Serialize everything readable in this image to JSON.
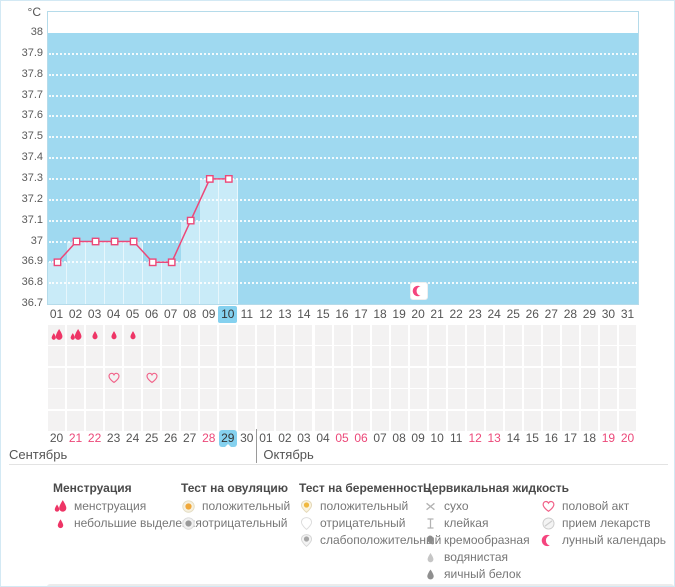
{
  "unit_label": "°C",
  "colors": {
    "plot_background": "#9fd9f0",
    "plot_column": "#c9ebf8",
    "accent_pink": "#ec4879",
    "highlight_blue": "#85d1ef",
    "cell_gray": "#f3f2f2"
  },
  "chart_data": {
    "type": "line",
    "ylabel": "°C",
    "ylim": [
      36.7,
      38
    ],
    "yticks": [
      "38",
      "37.9",
      "37.8",
      "37.7",
      "37.6",
      "37.5",
      "37.4",
      "37.3",
      "37.2",
      "37.1",
      "37",
      "36.9",
      "36.8",
      "36.7"
    ],
    "x_cycle_days": [
      "01",
      "02",
      "03",
      "04",
      "05",
      "06",
      "07",
      "08",
      "09",
      "10",
      "11",
      "12",
      "13",
      "14",
      "15",
      "16",
      "17",
      "18",
      "19",
      "20",
      "21",
      "22",
      "23",
      "24",
      "25",
      "26",
      "27",
      "28",
      "29",
      "30",
      "31"
    ],
    "series": [
      {
        "values": [
          36.9,
          37,
          37,
          37,
          37,
          36.9,
          36.9,
          37.1,
          37.3,
          37.3,
          null,
          null,
          null,
          null,
          null,
          null,
          null,
          null,
          null,
          null,
          null,
          null,
          null,
          null,
          null,
          null,
          null,
          null,
          null,
          null,
          null
        ]
      }
    ],
    "highlight_day": "10",
    "moon_marker_day": "20",
    "grid": "dotted-white-horizontal",
    "legend_position": "bottom"
  },
  "symbol_grid": {
    "rows": [
      {
        "name": "row-1",
        "icons": {
          "01": "flow-heavy",
          "02": "flow-heavy",
          "03": "flow-light",
          "04": "flow-light",
          "05": "flow-light"
        }
      },
      {
        "name": "row-2",
        "icons": {}
      },
      {
        "name": "row-3",
        "icons": {
          "04": "heart",
          "06": "heart"
        }
      },
      {
        "name": "row-4",
        "icons": {}
      },
      {
        "name": "row-5",
        "icons": {}
      }
    ]
  },
  "calendar": {
    "months": [
      {
        "label": "Сентябрь",
        "dates": [
          {
            "text": "20"
          },
          {
            "text": "21",
            "weekend": true
          },
          {
            "text": "22",
            "weekend": true
          },
          {
            "text": "23"
          },
          {
            "text": "24"
          },
          {
            "text": "25"
          },
          {
            "text": "26"
          },
          {
            "text": "27"
          },
          {
            "text": "28",
            "weekend": true
          },
          {
            "text": "29",
            "weekend": true,
            "today": true
          },
          {
            "text": "30"
          }
        ]
      },
      {
        "label": "Октябрь",
        "dates": [
          {
            "text": "01"
          },
          {
            "text": "02"
          },
          {
            "text": "03"
          },
          {
            "text": "04"
          },
          {
            "text": "05",
            "weekend": true
          },
          {
            "text": "06",
            "weekend": true
          },
          {
            "text": "07"
          },
          {
            "text": "08"
          },
          {
            "text": "09"
          },
          {
            "text": "10"
          },
          {
            "text": "11"
          },
          {
            "text": "12",
            "weekend": true
          },
          {
            "text": "13",
            "weekend": true
          },
          {
            "text": "14"
          },
          {
            "text": "15"
          },
          {
            "text": "16"
          },
          {
            "text": "17"
          },
          {
            "text": "18"
          },
          {
            "text": "19",
            "weekend": true
          },
          {
            "text": "20",
            "weekend": true
          }
        ]
      }
    ]
  },
  "legend": {
    "columns": [
      {
        "header": "Менструация",
        "items": [
          {
            "icon": "flow-heavy",
            "label": "менструация"
          },
          {
            "icon": "flow-light",
            "label": "небольшие выделения"
          }
        ]
      },
      {
        "header": "Тест на овуляцию",
        "items": [
          {
            "icon": "ovu-positive",
            "label": "положительный"
          },
          {
            "icon": "ovu-negative",
            "label": "отрицательный"
          }
        ]
      },
      {
        "header": "Тест на беременность",
        "items": [
          {
            "icon": "preg-positive",
            "label": "положительный"
          },
          {
            "icon": "preg-negative",
            "label": "отрицательный"
          },
          {
            "icon": "preg-weak",
            "label": "слабоположительный"
          }
        ]
      },
      {
        "header": "Цервикальная жидкость",
        "items": [
          {
            "icon": "dry",
            "label": "сухо"
          },
          {
            "icon": "sticky",
            "label": "клейкая"
          },
          {
            "icon": "creamy",
            "label": "кремообразная"
          },
          {
            "icon": "watery",
            "label": "водянистая"
          },
          {
            "icon": "eggwhite",
            "label": "яичный белок"
          }
        ]
      },
      {
        "header": "",
        "items": [
          {
            "icon": "heart",
            "label": "половой акт"
          },
          {
            "icon": "pill",
            "label": "прием лекарств"
          },
          {
            "icon": "moon",
            "label": "лунный календарь"
          }
        ]
      }
    ]
  }
}
